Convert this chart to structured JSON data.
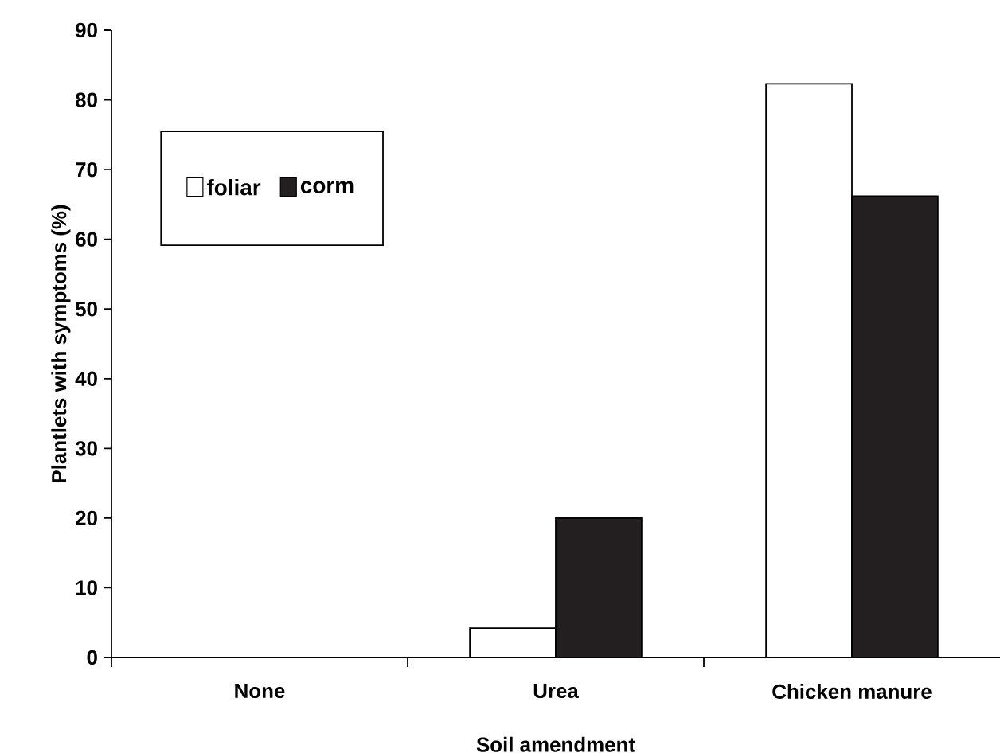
{
  "chart_data": {
    "type": "bar",
    "xlabel": "Soil amendment",
    "ylabel": "Plantlets with symptoms (%)",
    "categories": [
      "None",
      "Urea",
      "Chicken manure"
    ],
    "series": [
      {
        "name": "foliar",
        "color": "#ffffff",
        "values": [
          0,
          4.2,
          82.3
        ]
      },
      {
        "name": "corm",
        "color": "#231f20",
        "values": [
          0,
          20,
          66.2
        ]
      }
    ],
    "ylim": [
      0,
      90
    ],
    "yticks": [
      0,
      10,
      20,
      30,
      40,
      50,
      60,
      70,
      80,
      90
    ],
    "legend": "top left",
    "grid": false
  }
}
